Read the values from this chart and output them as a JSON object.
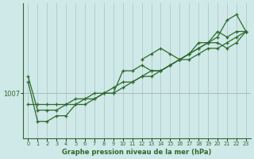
{
  "xlabel": "Graphe pression niveau de la mer (hPa)",
  "bg_color": "#cfe8e8",
  "line_color": "#2d6a2d",
  "grid_color_v": "#b0c8c8",
  "grid_color_h": "#aabbbb",
  "ylabel_val": 1007,
  "xlim": [
    -0.5,
    23.5
  ],
  "ylim": [
    999,
    1023
  ],
  "series": [
    {
      "x": [
        0,
        1,
        2,
        3,
        4,
        5,
        6,
        7,
        8,
        9,
        10,
        11,
        12,
        13,
        14,
        15,
        16,
        17,
        18,
        19,
        20,
        21,
        22,
        23
      ],
      "y": [
        1010,
        1004,
        1004,
        1004,
        1005,
        1005,
        1005,
        1006,
        1007,
        1007,
        1008,
        1009,
        1010,
        1011,
        1011,
        1012,
        1013,
        1014,
        1015,
        1016,
        1017,
        1020,
        1021,
        1018
      ]
    },
    {
      "x": [
        0,
        1,
        2,
        3,
        4,
        5,
        6,
        7,
        8,
        9,
        10,
        11,
        12,
        13,
        14,
        15,
        16,
        17,
        18,
        19,
        20,
        21,
        22,
        23
      ],
      "y": [
        1009,
        1002,
        1002,
        1003,
        1003,
        1005,
        1006,
        1006,
        1007,
        1007,
        1011,
        1011,
        1012,
        1011,
        1011,
        1012,
        1013,
        1014,
        1015,
        1016,
        1016,
        1015,
        1016,
        1018
      ]
    },
    {
      "x": [
        12,
        13,
        14,
        15,
        16,
        17,
        18,
        19,
        20,
        21,
        22,
        23
      ],
      "y": [
        1013,
        1014,
        1015,
        1014,
        1013,
        1014,
        1016,
        1016,
        1018,
        1017,
        1018,
        1018
      ]
    },
    {
      "x": [
        0,
        1,
        2,
        3,
        4,
        5,
        6,
        7,
        8,
        9,
        10,
        11,
        12,
        13,
        14,
        15,
        16,
        17,
        18,
        19,
        20,
        21,
        22,
        23
      ],
      "y": [
        1005,
        1005,
        1005,
        1005,
        1005,
        1006,
        1006,
        1007,
        1007,
        1008,
        1009,
        1009,
        1010,
        1010,
        1011,
        1012,
        1013,
        1013,
        1014,
        1015,
        1015,
        1016,
        1017,
        1018
      ]
    }
  ]
}
